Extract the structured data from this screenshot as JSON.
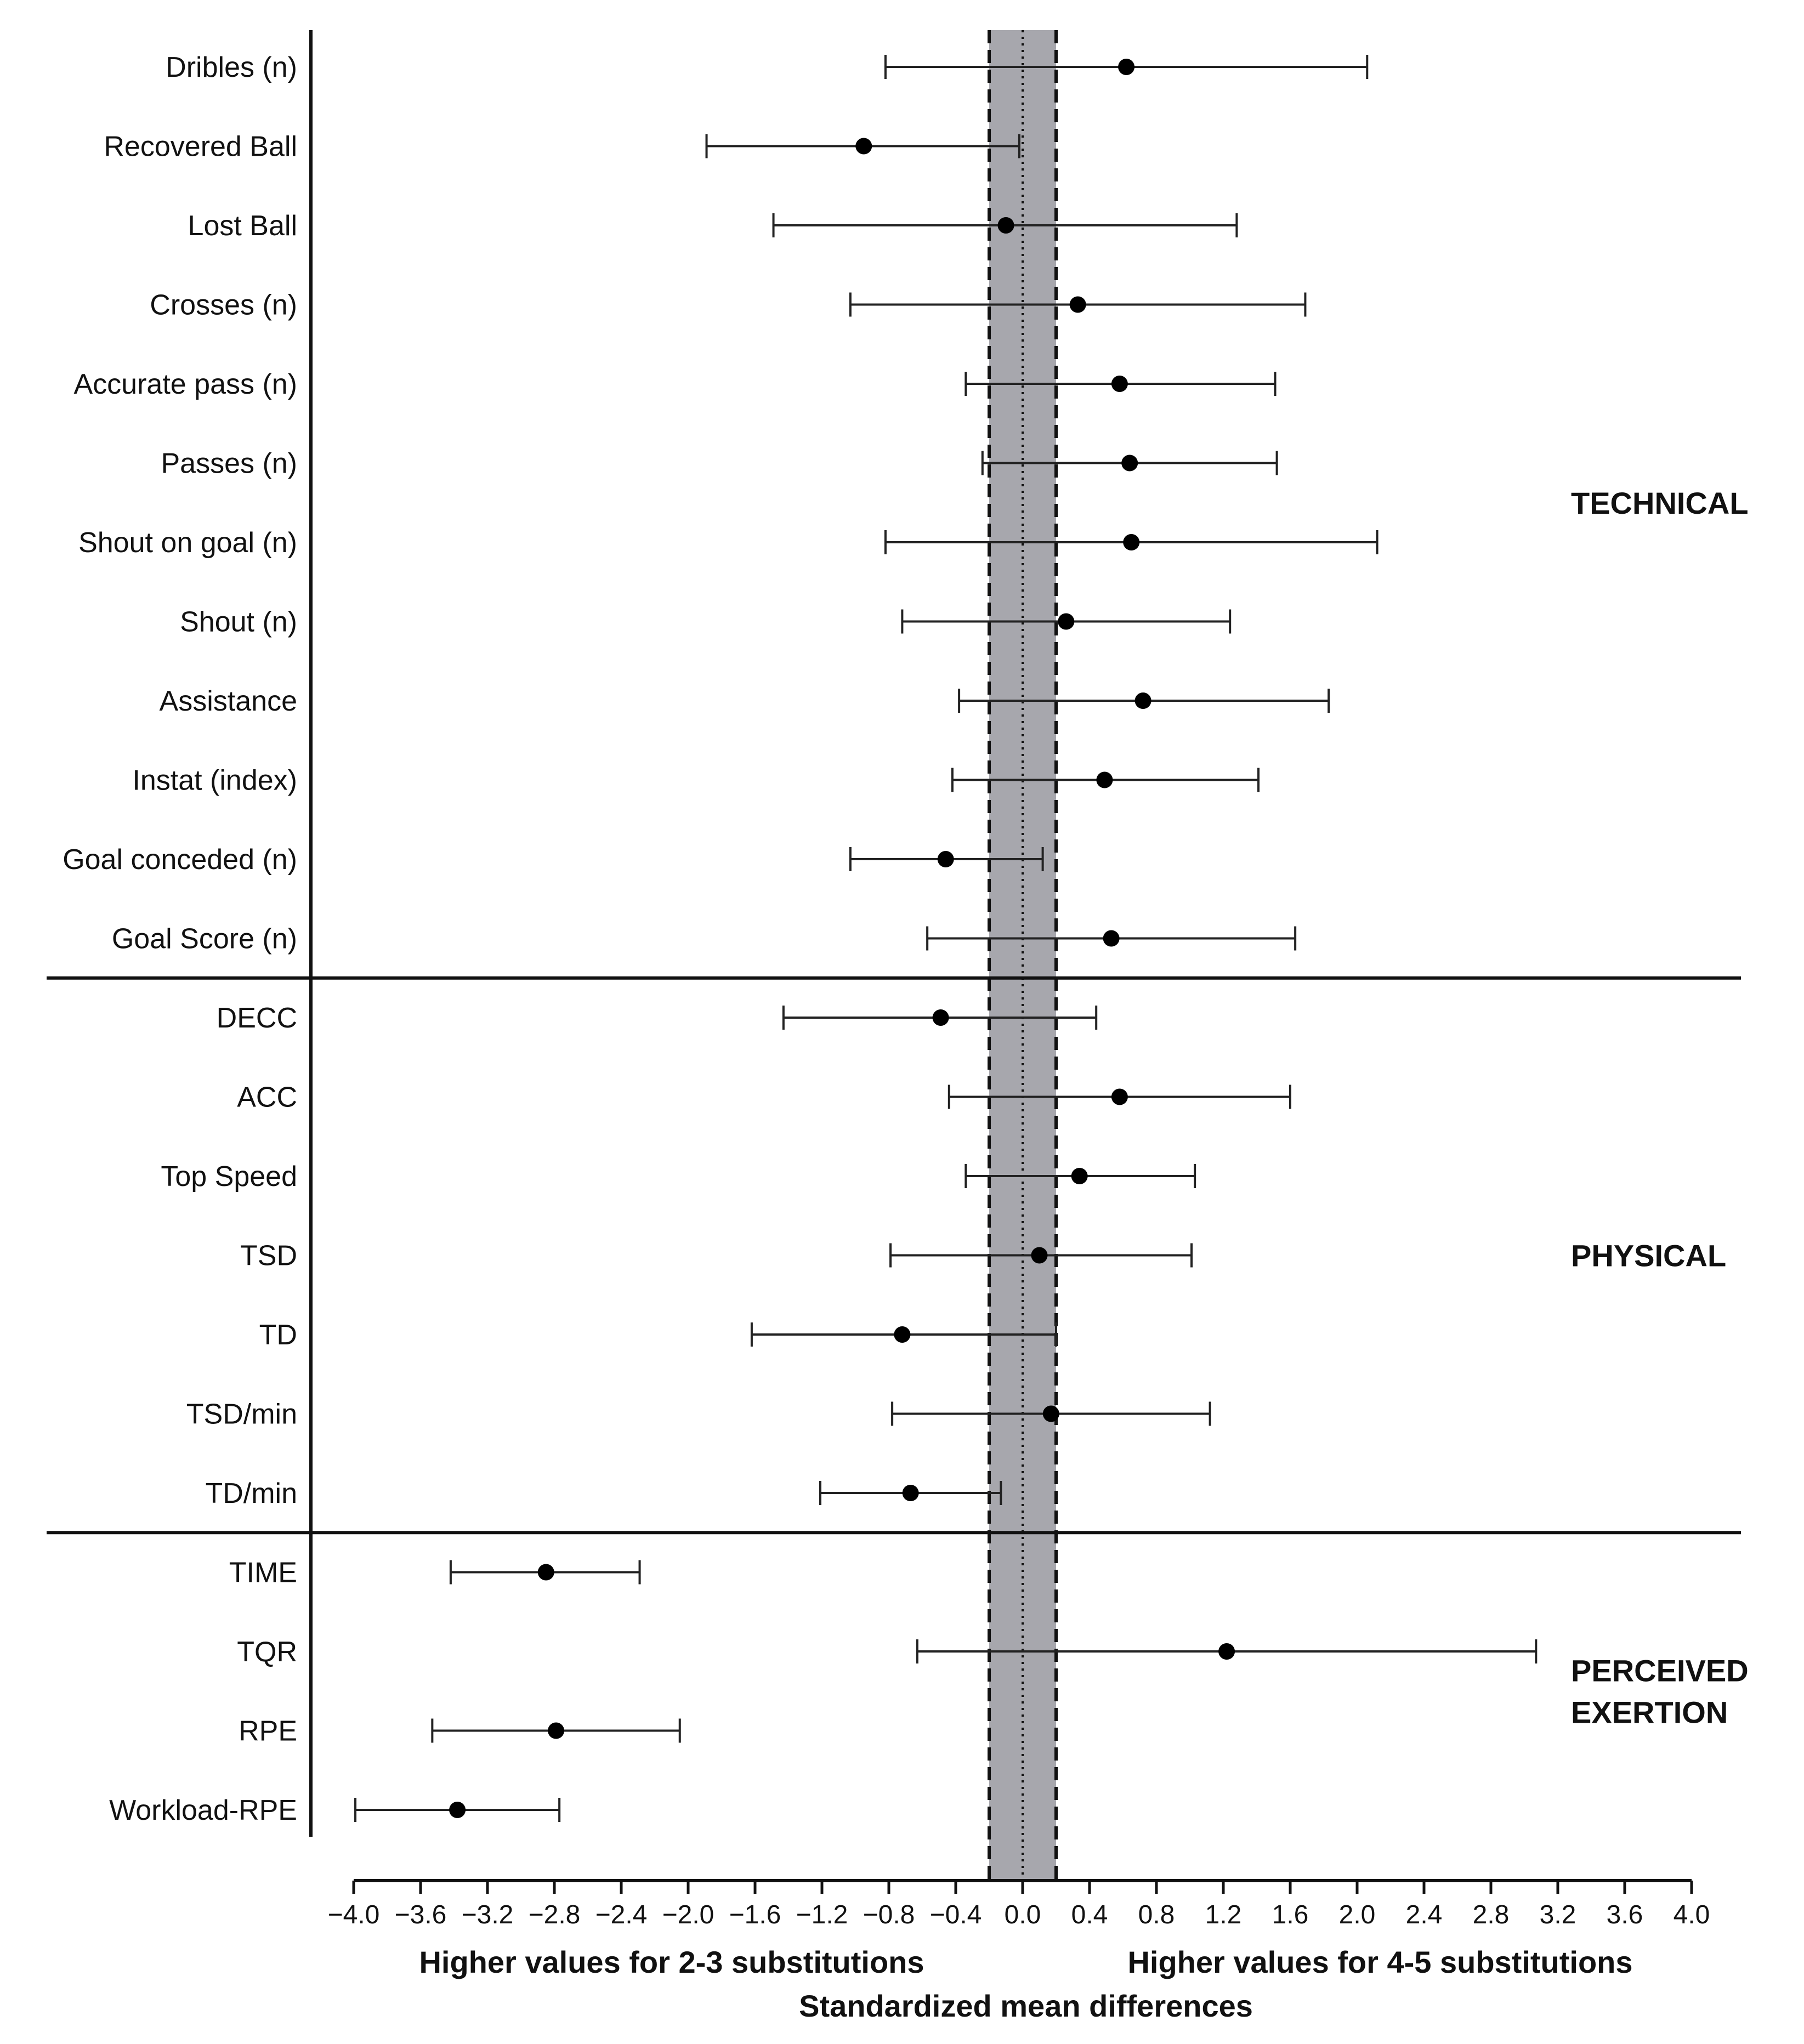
{
  "chart_data": {
    "type": "forest",
    "x": {
      "min": -4.0,
      "max": 4.0,
      "step": 0.4
    },
    "x_tick_labels": [
      "−4.0",
      "−3.6",
      "−3.2",
      "−2.8",
      "−2.4",
      "−2.0",
      "−1.6",
      "−1.2",
      "−0.8",
      "−0.4",
      "0.0",
      "0.4",
      "0.8",
      "1.2",
      "1.6",
      "2.0",
      "2.4",
      "2.8",
      "3.2",
      "3.6",
      "4.0"
    ],
    "reference_band": [
      -0.2,
      0.2
    ],
    "reference_line": 0.0,
    "xlabel": "Standardized mean differences",
    "left_caption": "Higher values for 2-3 substitutions",
    "right_caption": "Higher values for 4-5 substitutions",
    "rows": [
      {
        "label": "Dribles (n)",
        "mean": 0.62,
        "lower": -0.82,
        "upper": 2.06
      },
      {
        "label": "Recovered Ball",
        "mean": -0.95,
        "lower": -1.89,
        "upper": -0.02
      },
      {
        "label": "Lost Ball",
        "mean": -0.1,
        "lower": -1.49,
        "upper": 1.28
      },
      {
        "label": "Crosses (n)",
        "mean": 0.33,
        "lower": -1.03,
        "upper": 1.69
      },
      {
        "label": "Accurate pass (n)",
        "mean": 0.58,
        "lower": -0.34,
        "upper": 1.51
      },
      {
        "label": "Passes (n)",
        "mean": 0.64,
        "lower": -0.24,
        "upper": 1.52
      },
      {
        "label": "Shout on goal (n)",
        "mean": 0.65,
        "lower": -0.82,
        "upper": 2.12
      },
      {
        "label": "Shout (n)",
        "mean": 0.26,
        "lower": -0.72,
        "upper": 1.24
      },
      {
        "label": "Assistance",
        "mean": 0.72,
        "lower": -0.38,
        "upper": 1.83
      },
      {
        "label": "Instat (index)",
        "mean": 0.49,
        "lower": -0.42,
        "upper": 1.41
      },
      {
        "label": "Goal conceded (n)",
        "mean": -0.46,
        "lower": -1.03,
        "upper": 0.12
      },
      {
        "label": "Goal Score (n)",
        "mean": 0.53,
        "lower": -0.57,
        "upper": 1.63
      },
      {
        "label": "DECC",
        "mean": -0.49,
        "lower": -1.43,
        "upper": 0.44
      },
      {
        "label": "ACC",
        "mean": 0.58,
        "lower": -0.44,
        "upper": 1.6
      },
      {
        "label": "Top Speed",
        "mean": 0.34,
        "lower": -0.34,
        "upper": 1.03
      },
      {
        "label": "TSD",
        "mean": 0.1,
        "lower": -0.79,
        "upper": 1.01
      },
      {
        "label": "TD",
        "mean": -0.72,
        "lower": -1.62,
        "upper": 0.2
      },
      {
        "label": "TSD/min",
        "mean": 0.17,
        "lower": -0.78,
        "upper": 1.12
      },
      {
        "label": "TD/min",
        "mean": -0.67,
        "lower": -1.21,
        "upper": -0.13
      },
      {
        "label": "TIME",
        "mean": -2.85,
        "lower": -3.42,
        "upper": -2.29
      },
      {
        "label": "TQR",
        "mean": 1.22,
        "lower": -0.63,
        "upper": 3.07
      },
      {
        "label": "RPE",
        "mean": -2.79,
        "lower": -3.53,
        "upper": -2.05
      },
      {
        "label": "Workload-RPE",
        "mean": -3.38,
        "lower": -3.99,
        "upper": -2.77
      }
    ],
    "groups": [
      {
        "lines": [
          "TECHNICAL"
        ],
        "first_row": 0,
        "last_row": 11
      },
      {
        "lines": [
          "PHYSICAL"
        ],
        "first_row": 12,
        "last_row": 18
      },
      {
        "lines": [
          "PERCEIVED",
          "EXERTION"
        ],
        "first_row": 19,
        "last_row": 22
      }
    ]
  }
}
